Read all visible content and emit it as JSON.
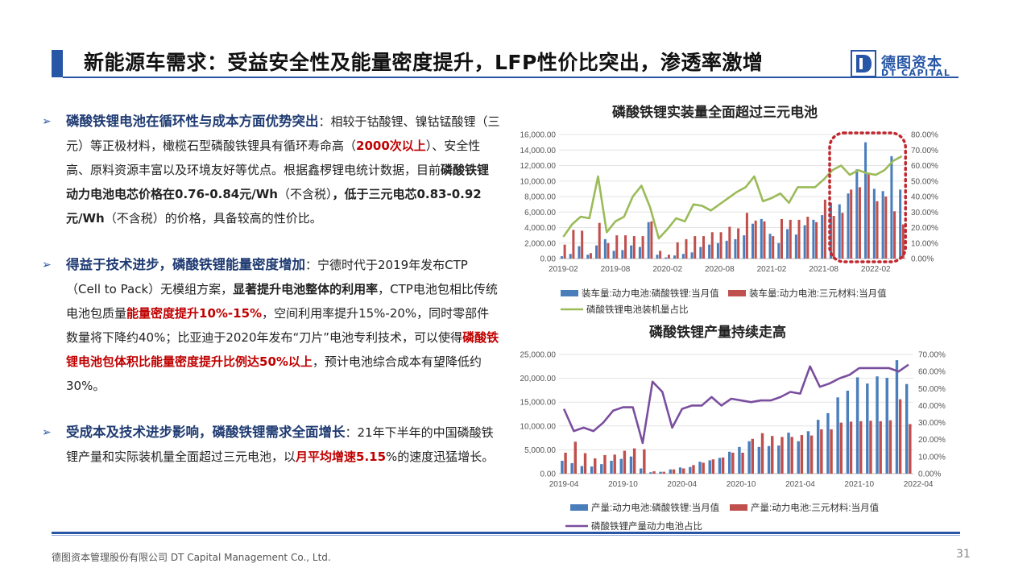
{
  "header": {
    "title": "新能源车需求：受益安全性及能量密度提升，LFP性价比突出，渗透率激增",
    "logo_cn": "德图资本",
    "logo_en": "DT CAPITAL"
  },
  "bullets": [
    {
      "segments": [
        {
          "t": "磷酸铁锂电池在循环性与成本方面优势突出",
          "s": "head"
        },
        {
          "t": "：相较于钴酸锂、镍钴锰酸锂（三元）等正极材料，橄榄石型磷酸铁锂具有循环寿命高（",
          "s": ""
        },
        {
          "t": "2000次以上",
          "s": "red"
        },
        {
          "t": "）、安全性高、原料资源丰富以及环境友好等优点。根据鑫椤锂电统计数据，目前",
          "s": ""
        },
        {
          "t": "磷酸铁锂动力电池电芯价格在0.76-0.84元/Wh",
          "s": "bold"
        },
        {
          "t": "（不含税）",
          "s": ""
        },
        {
          "t": "，低于三元电芯0.83-0.92元/Wh",
          "s": "bold"
        },
        {
          "t": "（不含税）的价格，具备较高的性价比。",
          "s": ""
        }
      ]
    },
    {
      "segments": [
        {
          "t": "得益于技术进步，磷酸铁锂能量密度增加",
          "s": "head"
        },
        {
          "t": "：宁德时代于2019年发布CTP（Cell to Pack）无模组方案，",
          "s": ""
        },
        {
          "t": "显著提升电池整体的利用率",
          "s": "bold"
        },
        {
          "t": "，CTP电池包相比传统电池包质量",
          "s": ""
        },
        {
          "t": "能量密度提升10%-15%",
          "s": "red"
        },
        {
          "t": "，空间利用率提升15%-20%，同时零部件数量将下降约40%；比亚迪于2020年发布“刀片”电池专利技术，可以使得",
          "s": ""
        },
        {
          "t": "磷酸铁锂电池包体积比能量密度提升比例达50%以上",
          "s": "red"
        },
        {
          "t": "，预计电池综合成本有望降低约30%。",
          "s": ""
        }
      ]
    },
    {
      "segments": [
        {
          "t": "受成本及技术进步影响，磷酸铁锂需求全面增长",
          "s": "head"
        },
        {
          "t": "：21年下半年的中国磷酸铁锂产量和实际装机量全面超过三元电池，以",
          "s": ""
        },
        {
          "t": "月平均增速5.15",
          "s": "red"
        },
        {
          "t": "%的速度迅猛增长。",
          "s": ""
        }
      ]
    }
  ],
  "chart_data": [
    {
      "type": "bar",
      "title": "磷酸铁锂实装量全面超过三元电池",
      "x_tick_labels": [
        "2019-02",
        "2019-08",
        "2020-02",
        "2020-08",
        "2021-02",
        "2021-08",
        "2022-02"
      ],
      "ylim": [
        0,
        16000
      ],
      "y_ticks": [
        "0.00",
        "2,000.00",
        "4,000.00",
        "6,000.00",
        "8,000.00",
        "10,000.00",
        "12,000.00",
        "14,000.00",
        "16,000.00"
      ],
      "y2lim": [
        0,
        80
      ],
      "y2_ticks": [
        "0.00%",
        "10.00%",
        "20.00%",
        "30.00%",
        "40.00%",
        "50.00%",
        "60.00%",
        "70.00%",
        "80.00%"
      ],
      "highlight_range": [
        31,
        38
      ],
      "series": [
        {
          "name": "装车量:动力电池:磷酸铁锂:当月值",
          "color": "#4a7ebb",
          "kind": "bar",
          "values": [
            300,
            600,
            1600,
            500,
            1700,
            2500,
            1000,
            1100,
            1700,
            1500,
            4700,
            500,
            150,
            400,
            600,
            800,
            1500,
            1800,
            2000,
            2300,
            2500,
            3000,
            4500,
            5100,
            3200,
            2000,
            3800,
            3100,
            4300,
            5000,
            5600,
            7200,
            7000,
            8400,
            11500,
            15000,
            9000,
            8700,
            13200,
            8900
          ]
        },
        {
          "name": "装车量:动力电池:三元材料:当月值",
          "color": "#c0504d",
          "kind": "bar",
          "values": [
            1800,
            3700,
            3600,
            700,
            4600,
            2000,
            3000,
            3000,
            2900,
            2900,
            4800,
            1000,
            500,
            2100,
            2500,
            2900,
            2900,
            3400,
            3400,
            4100,
            3900,
            5900,
            4900,
            4800,
            2900,
            5100,
            5000,
            5000,
            5400,
            4700,
            7600,
            5500,
            5900,
            8900,
            9200,
            11000,
            7400,
            8000,
            6100,
            4400
          ]
        },
        {
          "name": "磷酸铁锂电池装机量占比",
          "color": "#9bbb59",
          "kind": "line",
          "values": [
            14,
            22,
            27,
            26,
            53,
            17,
            24,
            27,
            40,
            47,
            33,
            13,
            19,
            26,
            24,
            35,
            34,
            31,
            35,
            39,
            43,
            46,
            53,
            37,
            39,
            42,
            36,
            46,
            46,
            46,
            51,
            57,
            60,
            54,
            57,
            55,
            54,
            57,
            63,
            66
          ]
        }
      ]
    },
    {
      "type": "bar",
      "title": "磷酸铁锂产量持续走高",
      "x_tick_labels": [
        "2019-04",
        "2019-10",
        "2020-04",
        "2020-10",
        "2021-04",
        "2021-10",
        "2022-04"
      ],
      "ylim": [
        0,
        25000
      ],
      "y_ticks": [
        "0.00",
        "5,000.00",
        "10,000.00",
        "15,000.00",
        "20,000.00",
        "25,000.00"
      ],
      "y2lim": [
        0,
        70
      ],
      "y2_ticks": [
        "0.00%",
        "10.00%",
        "20.00%",
        "30.00%",
        "40.00%",
        "50.00%",
        "60.00%",
        "70.00%"
      ],
      "series": [
        {
          "name": "产量:动力电池:磷酸铁锂:当月值",
          "color": "#4a7ebb",
          "kind": "bar",
          "values": [
            2700,
            2200,
            1600,
            1500,
            2000,
            2700,
            3100,
            3600,
            1100,
            300,
            400,
            900,
            1300,
            1400,
            2500,
            2800,
            3300,
            4600,
            5600,
            6800,
            5600,
            5800,
            5900,
            8600,
            6800,
            8900,
            11300,
            12700,
            16000,
            17400,
            20200,
            18900,
            20400,
            20100,
            23800,
            18800
          ]
        },
        {
          "name": "产量:动力电池:三元材料:当月值",
          "color": "#c0504d",
          "kind": "bar",
          "values": [
            4400,
            6700,
            4300,
            3200,
            3900,
            4000,
            4800,
            5300,
            5100,
            500,
            400,
            900,
            1100,
            1800,
            2300,
            3000,
            3400,
            4400,
            4400,
            7300,
            8500,
            7900,
            7700,
            7700,
            8100,
            8000,
            9300,
            9300,
            10700,
            10900,
            11000,
            11100,
            11000,
            11200,
            15600,
            10400
          ]
        },
        {
          "name": "磷酸铁锂产量动力电池占比",
          "color": "#7a4e9e",
          "kind": "line",
          "values": [
            38,
            25,
            27,
            25,
            30,
            37,
            39,
            39,
            18,
            54,
            48,
            27,
            38,
            40,
            40,
            45,
            40,
            44,
            43,
            42,
            43,
            43,
            45,
            48,
            47,
            63,
            51,
            53,
            56,
            58,
            62,
            62,
            62,
            62,
            60,
            64
          ]
        }
      ]
    }
  ],
  "footer": {
    "company": "德图资本管理股份有限公司  DT Capital Management  Co., Ltd.",
    "page": "31"
  }
}
